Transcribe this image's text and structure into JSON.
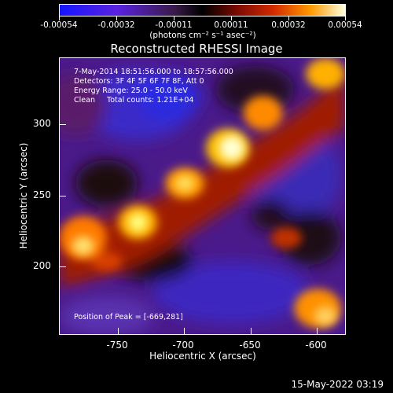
{
  "colorbar": {
    "labels": [
      "-0.00054",
      "-0.00032",
      "-0.00011",
      "0.00011",
      "0.00032",
      "0.00054"
    ],
    "units": "(photons cm⁻² s⁻¹ asec⁻²)"
  },
  "title": "Reconstructed RHESSI Image",
  "info": {
    "time": "7-May-2014 18:51:56.000 to 18:57:56.000",
    "detectors": "Detectors: 3F 4F 5F 6F 7F 8F, Att 0",
    "energy": "Energy Range: 25.0 - 50.0 keV",
    "clean": "Clean     Total counts: 1.21E+04"
  },
  "peak": "Position of Peak = [-669,281]",
  "axes": {
    "xlabel": "Heliocentric X (arcsec)",
    "ylabel": "Heliocentric Y (arcsec)",
    "xticks": [
      "-750",
      "-700",
      "-650",
      "-600"
    ],
    "yticks": [
      "300",
      "250",
      "200"
    ]
  },
  "footer": "15-May-2022 03:19"
}
